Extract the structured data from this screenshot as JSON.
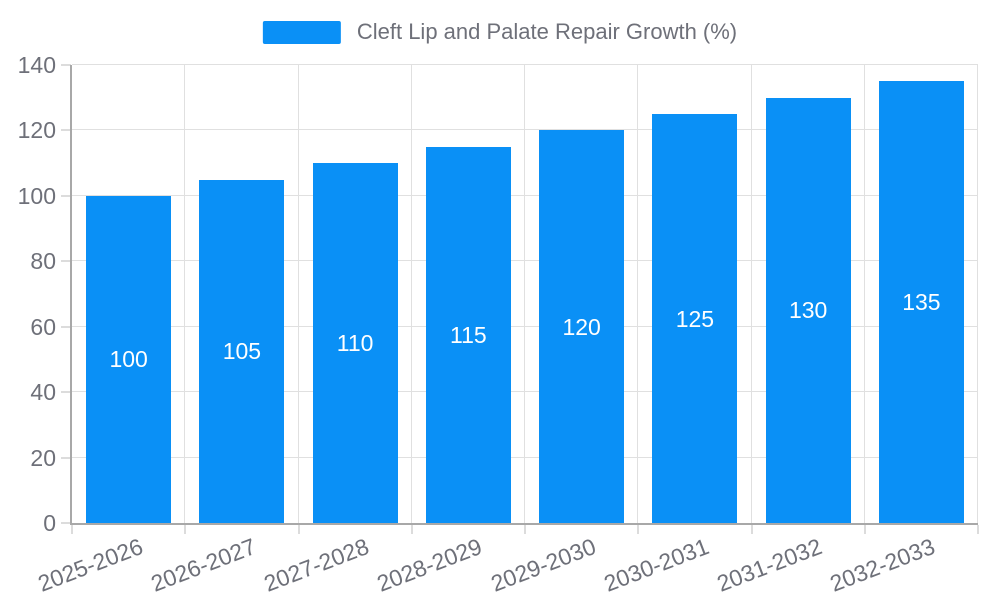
{
  "legend": {
    "label": "Cleft Lip and Palate Repair Growth (%)"
  },
  "colors": {
    "bar": "#0a90f6",
    "axis_text": "#6e7079",
    "value_label": "#ffffff",
    "grid_line": "#e0e0e0",
    "tick_line": "#dcdcdc",
    "axis_line": "#a8a8a8",
    "background": "#ffffff"
  },
  "chart_data": {
    "type": "bar",
    "title": "",
    "xlabel": "",
    "ylabel": "",
    "series_name": "Cleft Lip and Palate Repair Growth (%)",
    "categories": [
      "2025-2026",
      "2026-2027",
      "2027-2028",
      "2028-2029",
      "2029-2030",
      "2030-2031",
      "2031-2032",
      "2032-2033"
    ],
    "values": [
      100,
      105,
      110,
      115,
      120,
      125,
      130,
      135
    ],
    "ylim": [
      0,
      140
    ],
    "yticks": [
      0,
      20,
      40,
      60,
      80,
      100,
      120,
      140
    ],
    "grid": true,
    "legend_position": "top-center",
    "value_label_position": "inside-middle",
    "x_label_rotation_deg": -21
  }
}
